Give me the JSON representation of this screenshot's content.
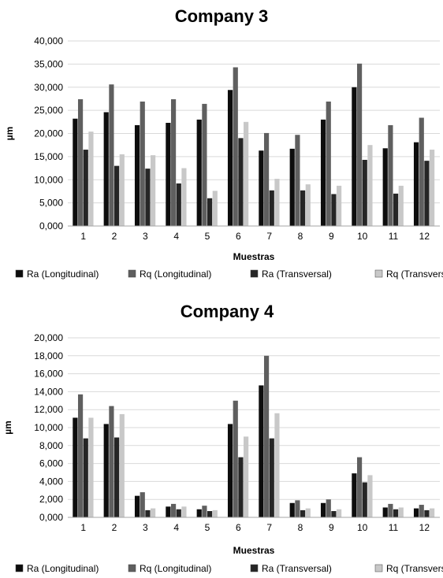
{
  "chart_data": [
    {
      "type": "bar",
      "title": "Company 3",
      "xlabel": "Muestras",
      "ylabel": "µm",
      "ylim": [
        0,
        40000
      ],
      "y_ticks": [
        "0,000",
        "5,000",
        "10,000",
        "15,000",
        "20,000",
        "25,000",
        "30,000",
        "35,000",
        "40,000"
      ],
      "categories": [
        "1",
        "2",
        "3",
        "4",
        "5",
        "6",
        "7",
        "8",
        "9",
        "10",
        "11",
        "12"
      ],
      "grid": true,
      "legend_position": "bottom",
      "series": [
        {
          "name": "Ra (Longitudinal)",
          "color": "#0d0d0d",
          "values": [
            23200,
            24600,
            21800,
            22300,
            23000,
            29400,
            16300,
            16700,
            23000,
            30000,
            16800,
            18100
          ]
        },
        {
          "name": "Rq (Longitudinal)",
          "color": "#5f5f5f",
          "values": [
            27400,
            30600,
            26900,
            27400,
            26400,
            34300,
            20100,
            19700,
            26900,
            35100,
            21800,
            23400
          ]
        },
        {
          "name": "Ra (Transversal)",
          "color": "#262626",
          "values": [
            16500,
            13000,
            12400,
            9200,
            6000,
            19000,
            7700,
            7700,
            6900,
            14300,
            7000,
            14100
          ]
        },
        {
          "name": "Rq (Transversal)",
          "color": "#c8c8c8",
          "values": [
            20400,
            15500,
            15300,
            12500,
            7600,
            22500,
            10200,
            9000,
            8700,
            17500,
            8700,
            16500
          ]
        }
      ]
    },
    {
      "type": "bar",
      "title": "Company 4",
      "xlabel": "Muestras",
      "ylabel": "µm",
      "ylim": [
        0,
        20000
      ],
      "y_ticks": [
        "0,000",
        "2,000",
        "4,000",
        "6,000",
        "8,000",
        "10,000",
        "12,000",
        "14,000",
        "16,000",
        "18,000",
        "20,000"
      ],
      "categories": [
        "1",
        "2",
        "3",
        "4",
        "5",
        "6",
        "7",
        "8",
        "9",
        "10",
        "11",
        "12"
      ],
      "grid": true,
      "legend_position": "bottom",
      "series": [
        {
          "name": "Ra (Longitudinal)",
          "color": "#0d0d0d",
          "values": [
            11100,
            10400,
            2400,
            1200,
            900,
            10400,
            14700,
            1600,
            1600,
            4900,
            1100,
            1000
          ]
        },
        {
          "name": "Rq (Longitudinal)",
          "color": "#5f5f5f",
          "values": [
            13700,
            12400,
            2800,
            1500,
            1300,
            13000,
            18000,
            1900,
            2000,
            6700,
            1500,
            1400
          ]
        },
        {
          "name": "Ra (Transversal)",
          "color": "#262626",
          "values": [
            8800,
            8900,
            800,
            900,
            700,
            6700,
            8800,
            800,
            700,
            3900,
            900,
            800
          ]
        },
        {
          "name": "Rq (Transversal)",
          "color": "#c8c8c8",
          "values": [
            11100,
            11500,
            1000,
            1200,
            800,
            9000,
            11600,
            1000,
            900,
            4700,
            1100,
            1000
          ]
        }
      ]
    }
  ]
}
